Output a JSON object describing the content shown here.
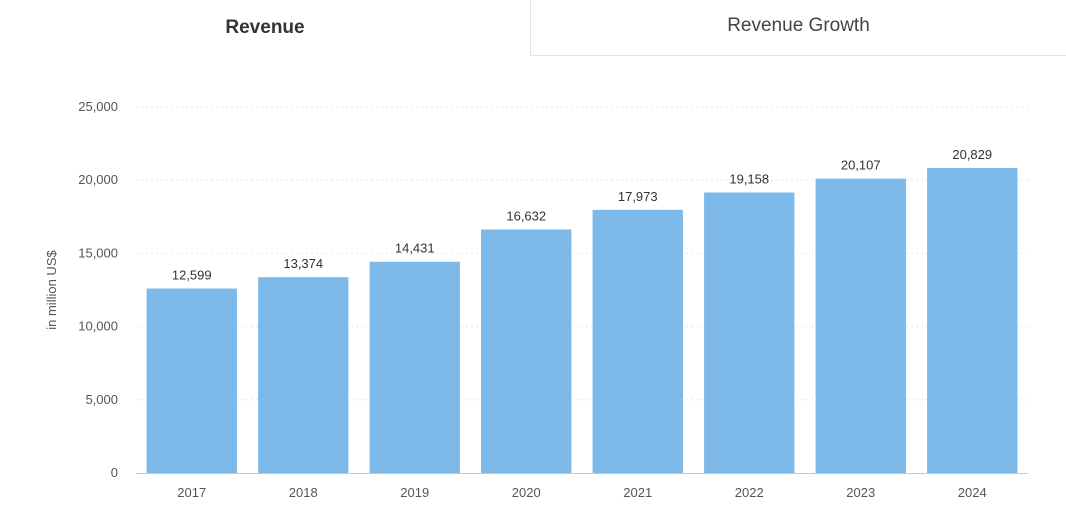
{
  "tabs": {
    "revenue": "Revenue",
    "revenue_growth": "Revenue Growth",
    "active": "revenue"
  },
  "chart_data": {
    "type": "bar",
    "categories": [
      "2017",
      "2018",
      "2019",
      "2020",
      "2021",
      "2022",
      "2023",
      "2024"
    ],
    "values": [
      12599,
      13374,
      14431,
      16632,
      17973,
      19158,
      20107,
      20829
    ],
    "value_labels": [
      "12,599",
      "13,374",
      "14,431",
      "16,632",
      "17,973",
      "19,158",
      "20,107",
      "20,829"
    ],
    "yticks": [
      0,
      5000,
      10000,
      15000,
      20000,
      25000
    ],
    "ytick_labels": [
      "0",
      "5,000",
      "10,000",
      "15,000",
      "20,000",
      "25,000"
    ],
    "ylim": [
      0,
      25000
    ],
    "title": "",
    "xlabel": "",
    "ylabel": "in million US$",
    "grid": true,
    "colors": {
      "bar": "#7cb9e8",
      "grid": "#e6e6e6",
      "axis": "#c8c8c8"
    }
  }
}
